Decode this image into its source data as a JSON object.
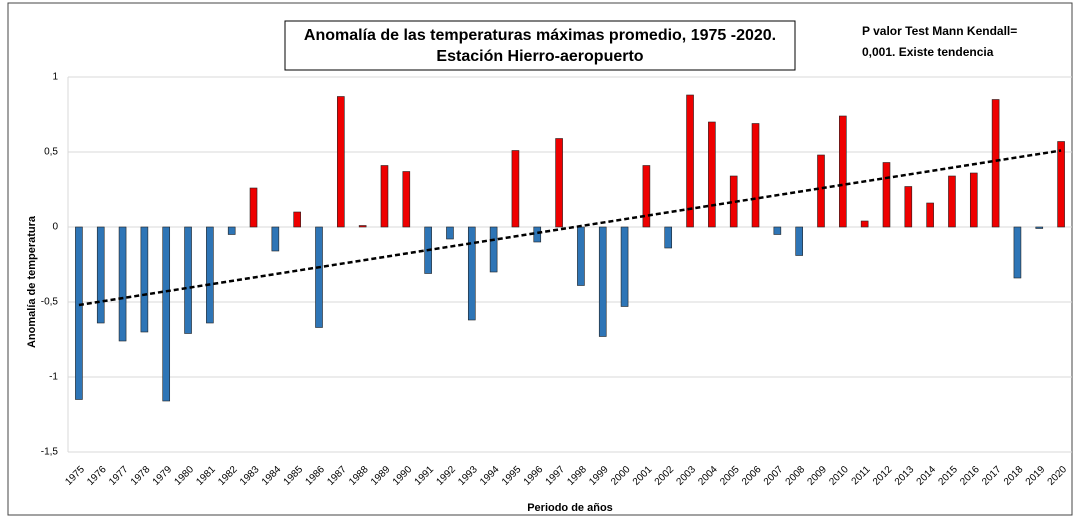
{
  "chart_data": {
    "type": "bar",
    "title": [
      "Anomalía de las temperaturas máximas promedio, 1975 -2020.",
      "Estación Hierro-aeropuerto"
    ],
    "annotation": [
      "P valor Test Mann Kendall=",
      "0,001. Existe tendencia"
    ],
    "y_label": "Anomalía de temperatura",
    "x_label": "Periodo de años",
    "categories": [
      "1975",
      "1976",
      "1977",
      "1978",
      "1979",
      "1980",
      "1981",
      "1982",
      "1983",
      "1984",
      "1985",
      "1986",
      "1987",
      "1988",
      "1989",
      "1990",
      "1991",
      "1992",
      "1993",
      "1994",
      "1995",
      "1996",
      "1997",
      "1998",
      "1999",
      "2000",
      "2001",
      "2002",
      "2003",
      "2004",
      "2005",
      "2006",
      "2007",
      "2008",
      "2009",
      "2010",
      "2011",
      "2012",
      "2013",
      "2014",
      "2015",
      "2016",
      "2017",
      "2018",
      "2019",
      "2020"
    ],
    "values": [
      -1.15,
      -0.64,
      -0.76,
      -0.7,
      -1.16,
      -0.71,
      -0.64,
      -0.05,
      0.26,
      -0.16,
      0.1,
      -0.67,
      0.87,
      0.01,
      0.41,
      0.37,
      -0.31,
      -0.08,
      -0.62,
      -0.3,
      0.51,
      -0.1,
      0.59,
      -0.39,
      -0.73,
      -0.53,
      0.41,
      -0.14,
      0.88,
      0.7,
      0.34,
      0.69,
      -0.05,
      -0.19,
      0.48,
      0.74,
      0.04,
      0.43,
      0.27,
      0.16,
      0.34,
      0.36,
      0.85,
      -0.34,
      -0.01,
      0.57
    ],
    "positive_color": "#ee0000",
    "negative_color": "#2e75b6",
    "trendline": {
      "values": [
        -0.52,
        0.51
      ],
      "color": "#000000"
    },
    "ylim": [
      -1.5,
      1
    ],
    "yticks": [
      {
        "value": -1.5,
        "label": "-1,5"
      },
      -1,
      {
        "value": -0.5,
        "label": "-0,5"
      },
      0,
      {
        "value": 0.5,
        "label": "0,5"
      },
      1
    ],
    "grid": true
  }
}
